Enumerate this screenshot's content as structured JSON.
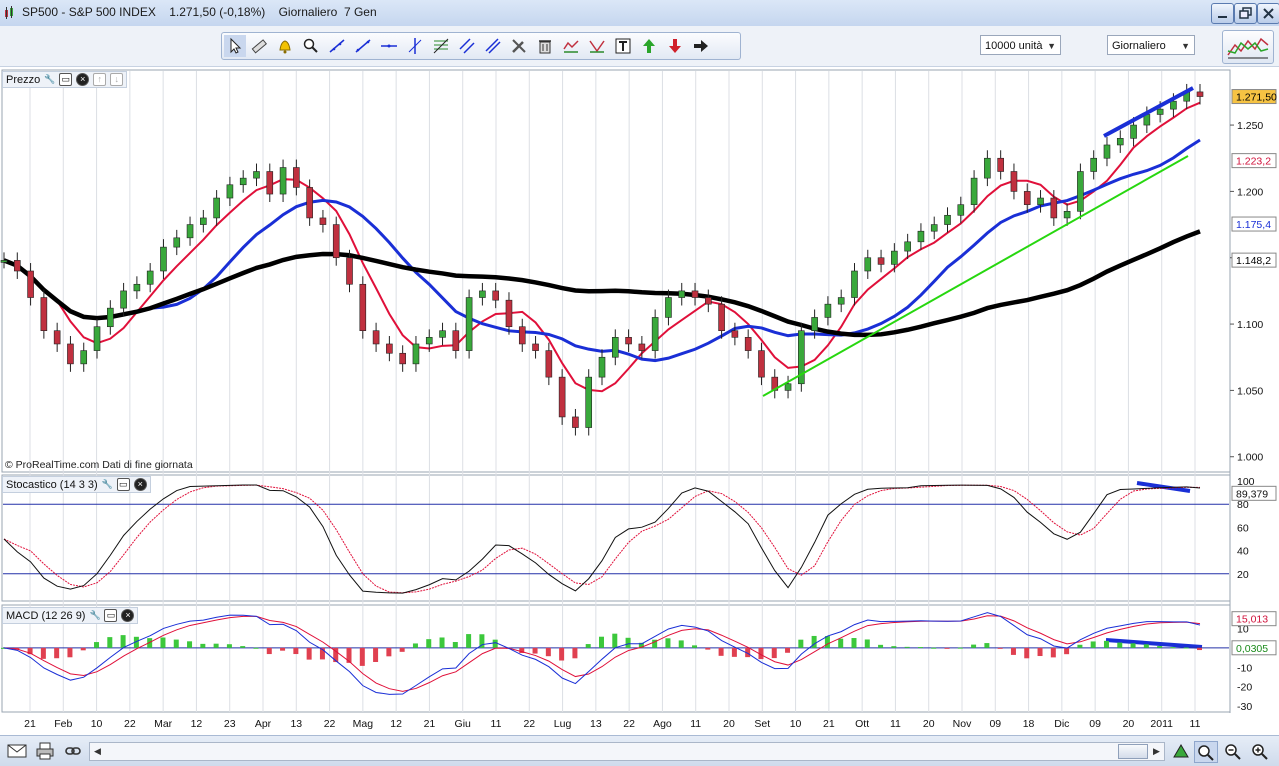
{
  "window": {
    "title": "SP500 - S&P 500 INDEX    1.271,50 (-0,18%)    Giornaliero  7 Gen"
  },
  "toolbar": {
    "tools": [
      "pointer-icon",
      "ruler-icon",
      "alarm-bell-icon",
      "zoom-tool-icon",
      "line-icon",
      "trend-line-icon",
      "horizontal-line-icon",
      "vertical-line-icon",
      "fibonacci-icon",
      "channel-icon",
      "parallel-lines-icon",
      "tools-icon",
      "trash-icon",
      "indicator-icon",
      "pattern-icon",
      "text-icon",
      "buy-arrow-icon",
      "sell-arrow-icon",
      "right-arrow-icon"
    ],
    "quantity_select": "10000 unità",
    "period_select": "Giornaliero"
  },
  "price_panel": {
    "label": "Prezzo",
    "watermark": "© ProRealTime.com  Dati di fine giornata",
    "yticks": [
      "1.250",
      "1.200",
      "1.150",
      "1.100",
      "1.050",
      "1.000"
    ],
    "tags": [
      {
        "text": "1.271,50",
        "value": 1271.5,
        "bg": "#f6c343",
        "fg": "#000000"
      },
      {
        "text": "1.223,2",
        "value": 1223.2,
        "bg": "#ffffff",
        "fg": "#d0103a"
      },
      {
        "text": "1.175,4",
        "value": 1175.4,
        "bg": "#ffffff",
        "fg": "#1a2fd6"
      },
      {
        "text": "1.148,2",
        "value": 1148.2,
        "bg": "#ffffff",
        "fg": "#000000"
      }
    ]
  },
  "stoch_panel": {
    "label": "Stocastico (14 3 3)",
    "yticks": [
      "100",
      "80",
      "60",
      "40",
      "20"
    ],
    "tag": "89,379",
    "tag_value": 89.379
  },
  "macd_panel": {
    "label": "MACD (12 26 9)",
    "yticks": [
      "10",
      "0",
      "-10",
      "-20",
      "-30"
    ],
    "tag_top": "15,013",
    "tag_top_value": 15.013,
    "tag_zero": "0,0305",
    "tag_zero_value": 0.0305
  },
  "time_axis": [
    "21",
    "Feb",
    "10",
    "22",
    "Mar",
    "12",
    "23",
    "Apr",
    "13",
    "22",
    "Mag",
    "12",
    "21",
    "Giu",
    "11",
    "22",
    "Lug",
    "13",
    "22",
    "Ago",
    "11",
    "20",
    "Set",
    "10",
    "21",
    "Ott",
    "11",
    "20",
    "Nov",
    "09",
    "18",
    "Dic",
    "09",
    "20",
    "2011",
    "11"
  ],
  "colors": {
    "ma20": "#e0103a",
    "ma50": "#1a2fd6",
    "ma200": "#000000",
    "trend_green": "#27d70f",
    "trend_blue": "#1a2fd6",
    "up_candle": "#39a83b",
    "down_candle": "#c0303f"
  },
  "chart_data": {
    "type": "candlestick",
    "series": [
      {
        "name": "SP500",
        "values": [
          1148,
          1140,
          1120,
          1095,
          1085,
          1070,
          1080,
          1098,
          1112,
          1125,
          1130,
          1140,
          1158,
          1165,
          1175,
          1180,
          1195,
          1205,
          1210,
          1215,
          1198,
          1218,
          1203,
          1180,
          1175,
          1150,
          1130,
          1095,
          1085,
          1078,
          1070,
          1085,
          1090,
          1095,
          1080,
          1120,
          1125,
          1118,
          1098,
          1085,
          1080,
          1060,
          1030,
          1022,
          1060,
          1075,
          1090,
          1085,
          1080,
          1105,
          1120,
          1125,
          1120,
          1115,
          1095,
          1090,
          1080,
          1060,
          1050,
          1055,
          1095,
          1105,
          1115,
          1120,
          1140,
          1150,
          1145,
          1155,
          1162,
          1170,
          1175,
          1182,
          1190,
          1210,
          1225,
          1215,
          1200,
          1190,
          1195,
          1180,
          1185,
          1215,
          1225,
          1235,
          1240,
          1250,
          1258,
          1262,
          1268,
          1275,
          1271.5
        ]
      }
    ],
    "moving_averages": [
      {
        "period": 20,
        "last": 1223.2
      },
      {
        "period": 50,
        "last": 1175.4
      },
      {
        "period": 200,
        "last": 1148.2
      }
    ],
    "ylim": [
      990,
      1290
    ],
    "stochastic": {
      "k_last": 89.379,
      "levels": [
        80,
        20
      ],
      "ylim": [
        0,
        100
      ]
    },
    "macd": {
      "last": 15.013,
      "hist_last": 0.0305,
      "ylim": [
        -32,
        20
      ]
    }
  }
}
